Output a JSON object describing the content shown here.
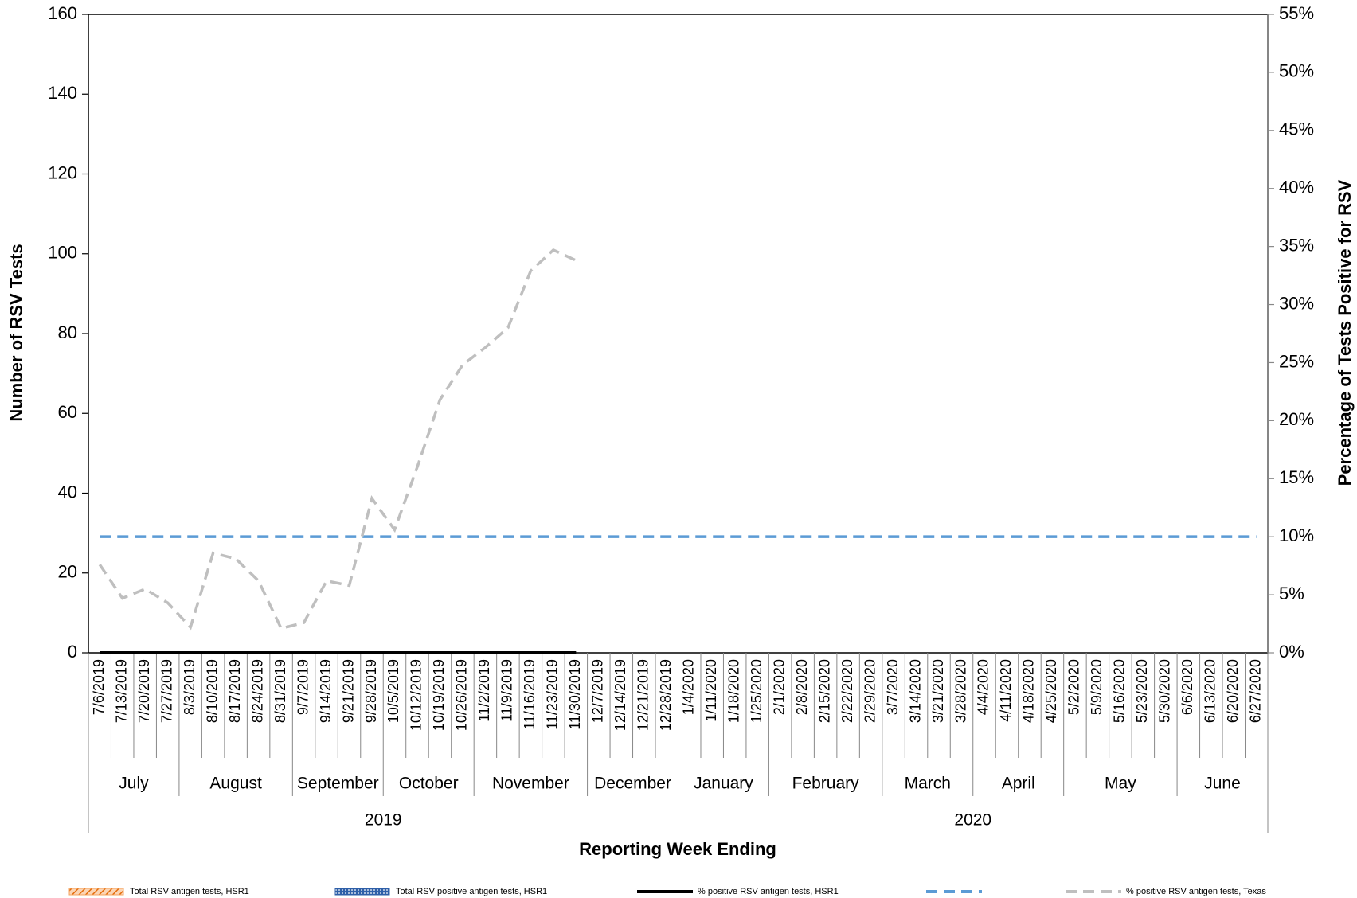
{
  "chart_data": {
    "type": "combo",
    "y_label": "Number of RSV Tests",
    "y2_label": "Percentage of Tests Positive for RSV",
    "x_label": "Reporting Week Ending",
    "categories": [
      "7/6/2019",
      "7/13/2019",
      "7/20/2019",
      "7/27/2019",
      "8/3/2019",
      "8/10/2019",
      "8/17/2019",
      "8/24/2019",
      "8/31/2019",
      "9/7/2019",
      "9/14/2019",
      "9/21/2019",
      "9/28/2019",
      "10/5/2019",
      "10/12/2019",
      "10/19/2019",
      "10/26/2019",
      "11/2/2019",
      "11/9/2019",
      "11/16/2019",
      "11/23/2019",
      "11/30/2019",
      "12/7/2019",
      "12/14/2019",
      "12/21/2019",
      "12/28/2019",
      "1/4/2020",
      "1/11/2020",
      "1/18/2020",
      "1/25/2020",
      "2/1/2020",
      "2/8/2020",
      "2/15/2020",
      "2/22/2020",
      "2/29/2020",
      "3/7/2020",
      "3/14/2020",
      "3/21/2020",
      "3/28/2020",
      "4/4/2020",
      "4/11/2020",
      "4/18/2020",
      "4/25/2020",
      "5/2/2020",
      "5/9/2020",
      "5/16/2020",
      "5/23/2020",
      "5/30/2020",
      "6/6/2020",
      "6/13/2020",
      "6/20/2020",
      "6/27/2020"
    ],
    "months": [
      "July",
      "August",
      "September",
      "October",
      "November",
      "December",
      "January",
      "February",
      "March",
      "April",
      "May",
      "June"
    ],
    "years": [
      "2019",
      "2020"
    ],
    "ylim": [
      0,
      160
    ],
    "yticks": [
      0,
      20,
      40,
      60,
      80,
      100,
      120,
      140,
      160
    ],
    "y2lim": [
      0,
      55
    ],
    "y2ticks": [
      {
        "value": 0,
        "label": "0%"
      },
      {
        "value": 5,
        "label": "5%"
      },
      {
        "value": 10,
        "label": "10%"
      },
      {
        "value": 15,
        "label": "15%"
      },
      {
        "value": 20,
        "label": "20%"
      },
      {
        "value": 25,
        "label": "25%"
      },
      {
        "value": 30,
        "label": "30%"
      },
      {
        "value": 35,
        "label": "35%"
      },
      {
        "value": 40,
        "label": "40%"
      },
      {
        "value": 45,
        "label": "45%"
      },
      {
        "value": 50,
        "label": "50%"
      },
      {
        "value": 55,
        "label": "55%"
      }
    ],
    "series": [
      {
        "name": "Total RSV antigen tests, HSR1",
        "type": "bar",
        "color": "#f4a460",
        "values": [
          0,
          0,
          0,
          0,
          0,
          0,
          0,
          0,
          0,
          0,
          0,
          0,
          0,
          0,
          0,
          0,
          0,
          0,
          0,
          0,
          0,
          0,
          null,
          null,
          null,
          null,
          null,
          null,
          null,
          null,
          null,
          null,
          null,
          null,
          null,
          null,
          null,
          null,
          null,
          null,
          null,
          null,
          null,
          null,
          null,
          null,
          null,
          null,
          null,
          null,
          null,
          null
        ]
      },
      {
        "name": "Total RSV positive antigen tests, HSR1",
        "type": "bar",
        "color": "#2e5fa8",
        "values": [
          0,
          0,
          0,
          0,
          0,
          0,
          0,
          0,
          0,
          0,
          0,
          0,
          0,
          0,
          0,
          0,
          0,
          0,
          0,
          0,
          0,
          0,
          null,
          null,
          null,
          null,
          null,
          null,
          null,
          null,
          null,
          null,
          null,
          null,
          null,
          null,
          null,
          null,
          null,
          null,
          null,
          null,
          null,
          null,
          null,
          null,
          null,
          null,
          null,
          null,
          null,
          null
        ]
      },
      {
        "name": "% positive RSV antigen tests, HSR1",
        "type": "line",
        "axis": "y2",
        "color": "#000000",
        "dash": "solid",
        "values": [
          0,
          0,
          0,
          0,
          0,
          0,
          0,
          0,
          0,
          0,
          0,
          0,
          0,
          0,
          0,
          0,
          0,
          0,
          0,
          0,
          0,
          0,
          null,
          null,
          null,
          null,
          null,
          null,
          null,
          null,
          null,
          null,
          null,
          null,
          null,
          null,
          null,
          null,
          null,
          null,
          null,
          null,
          null,
          null,
          null,
          null,
          null,
          null,
          null,
          null,
          null,
          null
        ]
      },
      {
        "type": "line",
        "axis": "y2",
        "color": "#5b9bd5",
        "dash": "dashed",
        "values": [
          10,
          10,
          10,
          10,
          10,
          10,
          10,
          10,
          10,
          10,
          10,
          10,
          10,
          10,
          10,
          10,
          10,
          10,
          10,
          10,
          10,
          10,
          10,
          10,
          10,
          10,
          10,
          10,
          10,
          10,
          10,
          10,
          10,
          10,
          10,
          10,
          10,
          10,
          10,
          10,
          10,
          10,
          10,
          10,
          10,
          10,
          10,
          10,
          10,
          10,
          10,
          10
        ]
      },
      {
        "name": "% positive RSV antigen tests, Texas",
        "type": "line",
        "axis": "y2",
        "color": "#bfbfbf",
        "dash": "dashed",
        "values": [
          7.6,
          4.7,
          5.5,
          4.3,
          2.2,
          8.6,
          8.1,
          6.2,
          2.1,
          2.6,
          6.2,
          5.8,
          13.3,
          10.6,
          16.0,
          21.8,
          24.8,
          26.3,
          28.0,
          32.9,
          34.7,
          33.8,
          null,
          null,
          null,
          null,
          null,
          null,
          null,
          null,
          null,
          null,
          null,
          null,
          null,
          null,
          null,
          null,
          null,
          null,
          null,
          null,
          null,
          null,
          null,
          null,
          null,
          null,
          null,
          null,
          null,
          null
        ]
      }
    ]
  }
}
